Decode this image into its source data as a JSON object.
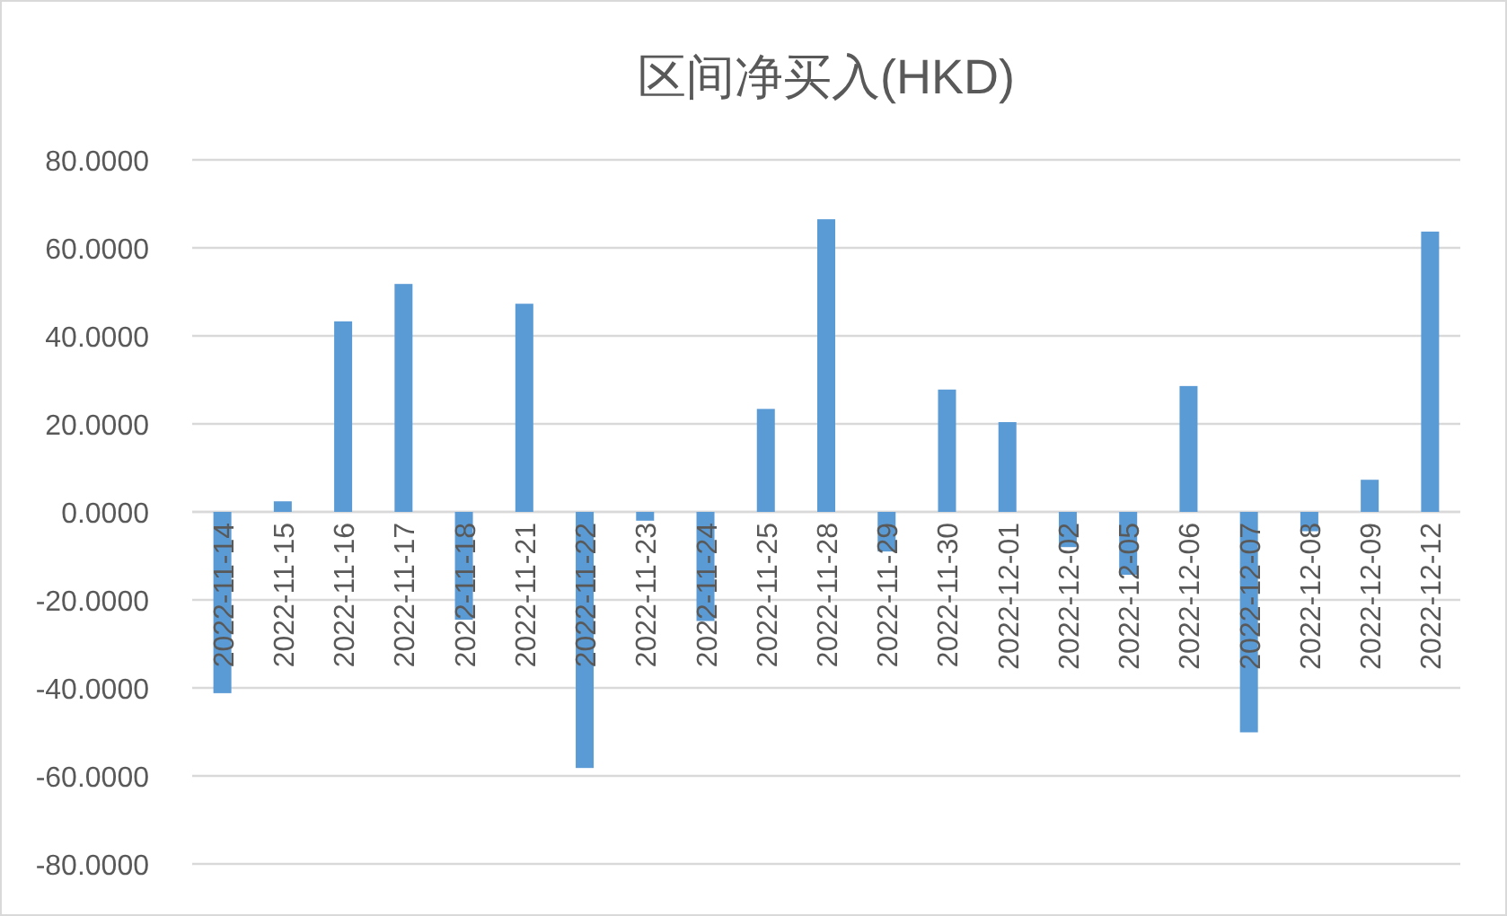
{
  "chart_data": {
    "type": "bar",
    "title": "区间净买入(HKD)",
    "categories": [
      "2022-11-14",
      "2022-11-15",
      "2022-11-16",
      "2022-11-17",
      "2022-11-18",
      "2022-11-21",
      "2022-11-22",
      "2022-11-23",
      "2022-11-24",
      "2022-11-25",
      "2022-11-28",
      "2022-11-29",
      "2022-11-30",
      "2022-12-01",
      "2022-12-02",
      "2022-12-05",
      "2022-12-06",
      "2022-12-07",
      "2022-12-08",
      "2022-12-09",
      "2022-12-12"
    ],
    "values": [
      -41.2,
      2.4,
      43.3,
      51.8,
      -24.5,
      47.3,
      -58.2,
      -2.0,
      -24.8,
      23.4,
      66.5,
      -9.0,
      27.8,
      20.4,
      -8.0,
      -14.3,
      28.6,
      -50.1,
      -4.4,
      7.3,
      63.7
    ],
    "color": "#5b9bd5",
    "ylim": [
      -80,
      80
    ],
    "yticks": [
      {
        "value": -80,
        "label": "-80.0000"
      },
      {
        "value": -60,
        "label": "-60.0000"
      },
      {
        "value": -40,
        "label": "-40.0000"
      },
      {
        "value": -20,
        "label": "-20.0000"
      },
      {
        "value": 0,
        "label": "0.0000"
      },
      {
        "value": 20,
        "label": "20.0000"
      },
      {
        "value": 40,
        "label": "40.0000"
      },
      {
        "value": 60,
        "label": "60.0000"
      },
      {
        "value": 80,
        "label": "80.0000"
      }
    ],
    "grid": "y"
  }
}
